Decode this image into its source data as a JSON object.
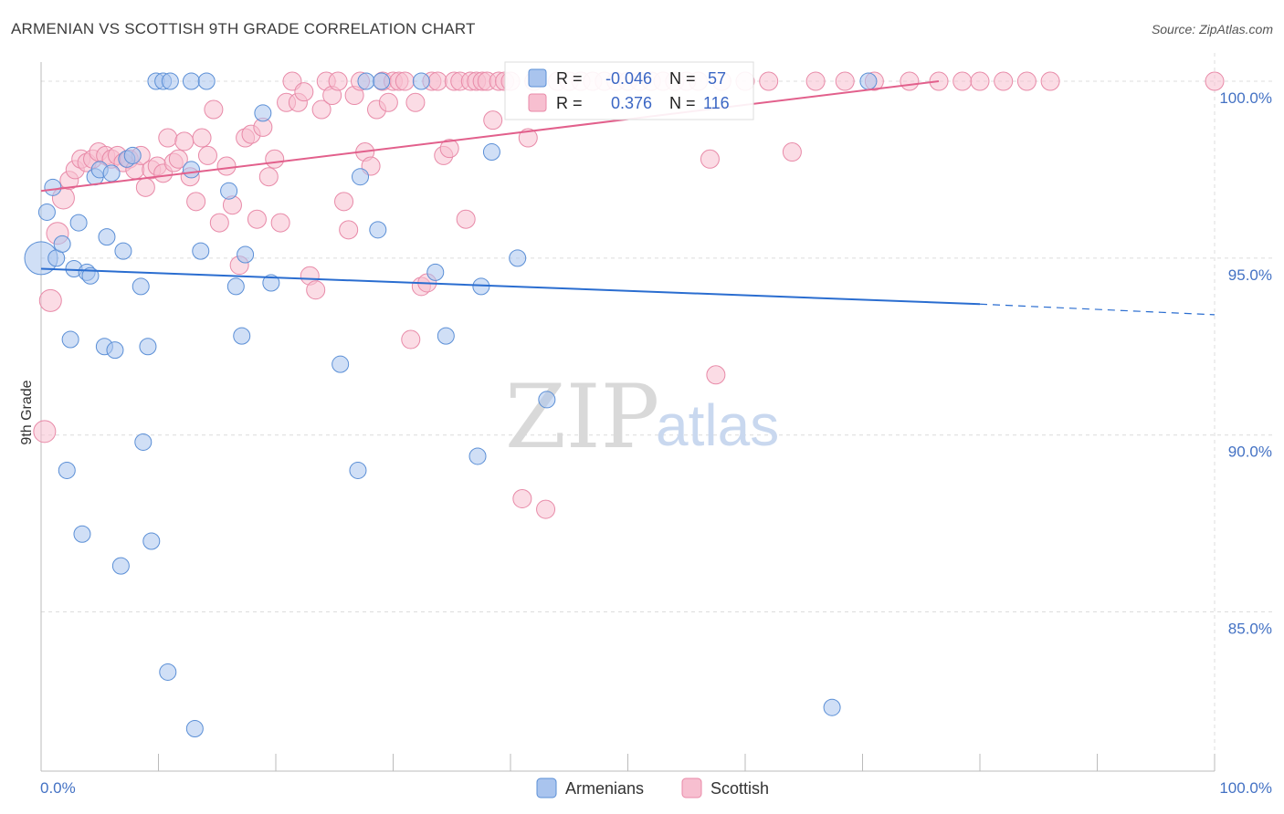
{
  "title": "ARMENIAN VS SCOTTISH 9TH GRADE CORRELATION CHART",
  "source": "Source: ZipAtlas.com",
  "watermark": {
    "zip": "ZIP",
    "atlas": "atlas"
  },
  "colors": {
    "armenian_fill": "#a9c4ee",
    "armenian_stroke": "#5b8fd6",
    "armenian_line": "#2a6dd0",
    "scottish_fill": "#f7bfd0",
    "scottish_stroke": "#e88aa8",
    "scottish_line": "#e2608c",
    "grid": "#dcdcdc",
    "tick_label": "#4472c4"
  },
  "stats": {
    "armenian": {
      "r_label": "R =",
      "r_value": "-0.046",
      "n_label": "N =",
      "n_value": "57"
    },
    "scottish": {
      "r_label": "R =",
      "r_value": "0.376",
      "n_label": "N =",
      "n_value": "116"
    }
  },
  "legend": {
    "armenian": "Armenians",
    "scottish": "Scottish"
  },
  "chart_data": {
    "type": "scatter",
    "title": "ARMENIAN VS SCOTTISH 9TH GRADE CORRELATION CHART",
    "xlabel": "",
    "ylabel": "9th Grade",
    "xlim": [
      0,
      100
    ],
    "ylim": [
      80.5,
      100.8
    ],
    "x_tick_labels": [
      "0.0%",
      "100.0%"
    ],
    "y_ticks": [
      85,
      90,
      95,
      100
    ],
    "y_tick_labels": [
      "85.0%",
      "90.0%",
      "95.0%",
      "100.0%"
    ],
    "x_minor_ticks": [
      0,
      10,
      20,
      30,
      40,
      50,
      60,
      70,
      80,
      90,
      100
    ],
    "series": [
      {
        "name": "Armenians",
        "trend": {
          "x": [
            0,
            80
          ],
          "y": [
            94.7,
            93.7
          ],
          "dashed_extension_to": [
            100,
            93.4
          ]
        },
        "points": [
          [
            0.0,
            95.0,
            18
          ],
          [
            0.5,
            96.3,
            9
          ],
          [
            1.0,
            97.0,
            9
          ],
          [
            1.3,
            95.0,
            9
          ],
          [
            1.8,
            95.4,
            9
          ],
          [
            2.2,
            89.0,
            9
          ],
          [
            2.5,
            92.7,
            9
          ],
          [
            2.8,
            94.7,
            9
          ],
          [
            3.2,
            96.0,
            9
          ],
          [
            3.5,
            87.2,
            9
          ],
          [
            3.9,
            94.6,
            9
          ],
          [
            4.2,
            94.5,
            9
          ],
          [
            4.6,
            97.3,
            9
          ],
          [
            5.0,
            97.5,
            9
          ],
          [
            5.4,
            92.5,
            9
          ],
          [
            5.6,
            95.6,
            9
          ],
          [
            6.0,
            97.4,
            9
          ],
          [
            6.3,
            92.4,
            9
          ],
          [
            6.8,
            86.3,
            9
          ],
          [
            7.0,
            95.2,
            9
          ],
          [
            7.3,
            97.8,
            9
          ],
          [
            7.8,
            97.9,
            9
          ],
          [
            8.5,
            94.2,
            9
          ],
          [
            8.7,
            89.8,
            9
          ],
          [
            9.1,
            92.5,
            9
          ],
          [
            9.4,
            87.0,
            9
          ],
          [
            9.8,
            100.0,
            9
          ],
          [
            10.4,
            100.0,
            9
          ],
          [
            10.8,
            83.3,
            9
          ],
          [
            11.0,
            100.0,
            9
          ],
          [
            12.8,
            100.0,
            9
          ],
          [
            12.8,
            97.5,
            9
          ],
          [
            13.1,
            81.7,
            9
          ],
          [
            13.6,
            95.2,
            9
          ],
          [
            14.1,
            100.0,
            9
          ],
          [
            16.0,
            96.9,
            9
          ],
          [
            16.6,
            94.2,
            9
          ],
          [
            17.1,
            92.8,
            9
          ],
          [
            17.4,
            95.1,
            9
          ],
          [
            18.9,
            99.1,
            9
          ],
          [
            19.6,
            94.3,
            9
          ],
          [
            25.5,
            92.0,
            9
          ],
          [
            27.0,
            89.0,
            9
          ],
          [
            27.2,
            97.3,
            9
          ],
          [
            27.7,
            100.0,
            9
          ],
          [
            28.7,
            95.8,
            9
          ],
          [
            29.0,
            100.0,
            9
          ],
          [
            32.4,
            100.0,
            9
          ],
          [
            33.6,
            94.6,
            9
          ],
          [
            34.5,
            92.8,
            9
          ],
          [
            37.2,
            89.4,
            9
          ],
          [
            37.5,
            94.2,
            9
          ],
          [
            38.4,
            98.0,
            9
          ],
          [
            40.6,
            95.0,
            9
          ],
          [
            43.1,
            91.0,
            9
          ],
          [
            67.4,
            82.3,
            9
          ],
          [
            70.5,
            100.0,
            9
          ]
        ]
      },
      {
        "name": "Scottish",
        "trend": {
          "x": [
            0,
            76.5
          ],
          "y": [
            96.9,
            100.0
          ]
        },
        "points": [
          [
            0.3,
            90.1,
            12
          ],
          [
            0.8,
            93.8,
            12
          ],
          [
            1.4,
            95.7,
            12
          ],
          [
            1.9,
            96.7,
            12
          ],
          [
            2.4,
            97.2,
            10
          ],
          [
            2.9,
            97.5,
            10
          ],
          [
            3.4,
            97.8,
            10
          ],
          [
            3.9,
            97.7,
            10
          ],
          [
            4.4,
            97.8,
            10
          ],
          [
            4.9,
            98.0,
            10
          ],
          [
            5.5,
            97.9,
            10
          ],
          [
            6.0,
            97.8,
            10
          ],
          [
            6.5,
            97.9,
            10
          ],
          [
            7.0,
            97.7,
            10
          ],
          [
            7.5,
            97.8,
            10
          ],
          [
            8.0,
            97.5,
            10
          ],
          [
            8.5,
            97.9,
            10
          ],
          [
            8.9,
            97.0,
            10
          ],
          [
            9.4,
            97.5,
            10
          ],
          [
            9.9,
            97.6,
            10
          ],
          [
            10.4,
            97.4,
            10
          ],
          [
            10.8,
            98.4,
            10
          ],
          [
            11.3,
            97.7,
            10
          ],
          [
            11.7,
            97.8,
            10
          ],
          [
            12.2,
            98.3,
            10
          ],
          [
            12.7,
            97.3,
            10
          ],
          [
            13.2,
            96.6,
            10
          ],
          [
            13.7,
            98.4,
            10
          ],
          [
            14.2,
            97.9,
            10
          ],
          [
            14.7,
            99.2,
            10
          ],
          [
            15.2,
            96.0,
            10
          ],
          [
            15.8,
            97.6,
            10
          ],
          [
            16.3,
            96.5,
            10
          ],
          [
            16.9,
            94.8,
            10
          ],
          [
            17.4,
            98.4,
            10
          ],
          [
            17.9,
            98.5,
            10
          ],
          [
            18.4,
            96.1,
            10
          ],
          [
            18.9,
            98.7,
            10
          ],
          [
            19.4,
            97.3,
            10
          ],
          [
            19.9,
            97.8,
            10
          ],
          [
            20.4,
            96.0,
            10
          ],
          [
            20.9,
            99.4,
            10
          ],
          [
            21.4,
            100.0,
            10
          ],
          [
            21.9,
            99.4,
            10
          ],
          [
            22.4,
            99.7,
            10
          ],
          [
            22.9,
            94.5,
            10
          ],
          [
            23.4,
            94.1,
            10
          ],
          [
            23.9,
            99.2,
            10
          ],
          [
            24.3,
            100.0,
            10
          ],
          [
            24.8,
            99.6,
            10
          ],
          [
            25.3,
            100.0,
            10
          ],
          [
            25.8,
            96.6,
            10
          ],
          [
            26.2,
            95.8,
            10
          ],
          [
            26.7,
            99.6,
            10
          ],
          [
            27.2,
            100.0,
            10
          ],
          [
            27.6,
            98.0,
            10
          ],
          [
            28.1,
            97.6,
            10
          ],
          [
            28.6,
            99.2,
            10
          ],
          [
            29.1,
            100.0,
            10
          ],
          [
            29.6,
            99.4,
            10
          ],
          [
            30.0,
            100.0,
            10
          ],
          [
            30.5,
            100.0,
            10
          ],
          [
            31.0,
            100.0,
            10
          ],
          [
            31.5,
            92.7,
            10
          ],
          [
            31.9,
            99.4,
            10
          ],
          [
            32.4,
            94.2,
            10
          ],
          [
            32.9,
            94.3,
            10
          ],
          [
            33.3,
            100.0,
            10
          ],
          [
            33.8,
            100.0,
            10
          ],
          [
            34.3,
            97.9,
            10
          ],
          [
            34.8,
            98.1,
            10
          ],
          [
            35.2,
            100.0,
            10
          ],
          [
            35.7,
            100.0,
            10
          ],
          [
            36.2,
            96.1,
            10
          ],
          [
            36.6,
            100.0,
            10
          ],
          [
            37.1,
            100.0,
            10
          ],
          [
            37.6,
            100.0,
            10
          ],
          [
            38.0,
            100.0,
            10
          ],
          [
            38.5,
            98.9,
            10
          ],
          [
            39.0,
            100.0,
            10
          ],
          [
            39.5,
            100.0,
            10
          ],
          [
            40.0,
            100.0,
            10
          ],
          [
            41.0,
            88.2,
            10
          ],
          [
            41.5,
            98.4,
            10
          ],
          [
            42.0,
            100.0,
            10
          ],
          [
            43.0,
            87.9,
            10
          ],
          [
            44.0,
            100.0,
            10
          ],
          [
            45.0,
            100.0,
            10
          ],
          [
            46.0,
            100.0,
            10
          ],
          [
            47.0,
            100.0,
            10
          ],
          [
            48.0,
            100.0,
            10
          ],
          [
            49.0,
            100.0,
            10
          ],
          [
            50.0,
            100.0,
            10
          ],
          [
            51.0,
            100.0,
            10
          ],
          [
            52.0,
            100.0,
            10
          ],
          [
            53.0,
            100.0,
            10
          ],
          [
            54.0,
            100.0,
            10
          ],
          [
            55.0,
            100.0,
            10
          ],
          [
            56.0,
            100.0,
            10
          ],
          [
            57.0,
            97.8,
            10
          ],
          [
            57.5,
            91.7,
            10
          ],
          [
            58.0,
            100.0,
            10
          ],
          [
            60.0,
            100.0,
            10
          ],
          [
            62.0,
            100.0,
            10
          ],
          [
            64.0,
            98.0,
            10
          ],
          [
            66.0,
            100.0,
            10
          ],
          [
            68.5,
            100.0,
            10
          ],
          [
            71.0,
            100.0,
            10
          ],
          [
            74.0,
            100.0,
            10
          ],
          [
            76.5,
            100.0,
            10
          ],
          [
            78.5,
            100.0,
            10
          ],
          [
            80.0,
            100.0,
            10
          ],
          [
            82.0,
            100.0,
            10
          ],
          [
            84.0,
            100.0,
            10
          ],
          [
            86.0,
            100.0,
            10
          ],
          [
            100.0,
            100.0,
            10
          ]
        ]
      }
    ]
  }
}
